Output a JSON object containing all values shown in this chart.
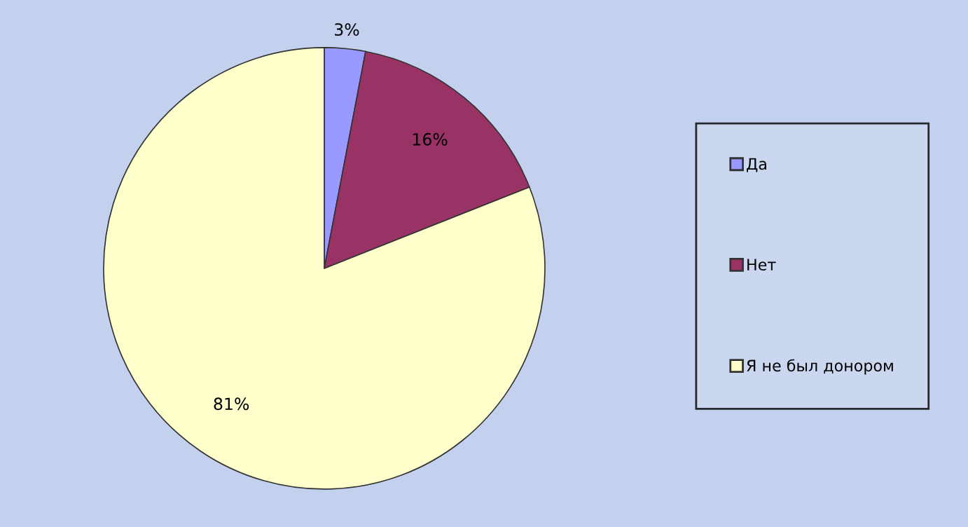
{
  "chart_data": {
    "type": "pie",
    "categories": [
      "Да",
      "Нет",
      "Я не был донором"
    ],
    "values": [
      3,
      16,
      81
    ],
    "colors": [
      "#9999ff",
      "#993366",
      "#ffffcc"
    ],
    "value_labels": [
      "3%",
      "16%",
      "81%"
    ],
    "legend": "right"
  }
}
